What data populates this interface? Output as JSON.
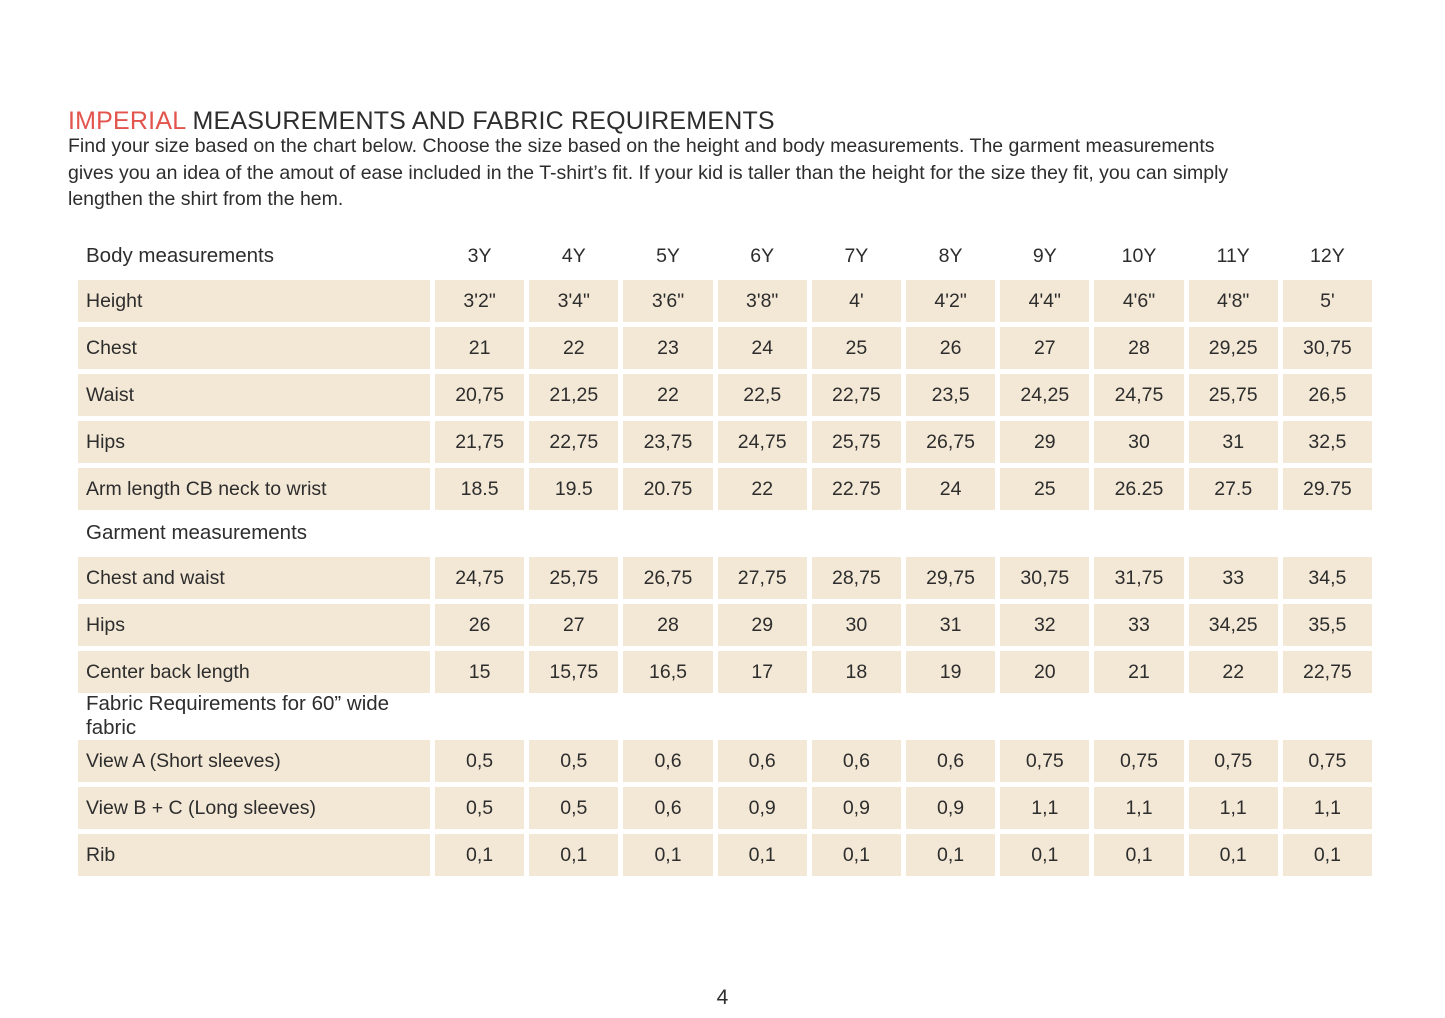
{
  "header": {
    "title_accent": "IMPERIAL",
    "title_rest": " MEASUREMENTS AND FABRIC REQUIREMENTS",
    "intro_lines": [
      "Find your size based on the chart below. Choose the size based on the height and body measurements. The garment measurements",
      "gives you an idea of the amout of ease included in the T-shirt’s fit. If your kid is taller than the height for the size they fit, you can simply",
      "lengthen the shirt from the hem."
    ]
  },
  "colors": {
    "accent_red": "#e2544c",
    "cell_beige": "#f3e8d6",
    "text_dark": "#2d2d2d"
  },
  "table": {
    "columns": [
      "3Y",
      "4Y",
      "5Y",
      "6Y",
      "7Y",
      "8Y",
      "9Y",
      "10Y",
      "11Y",
      "12Y"
    ],
    "sections": [
      {
        "heading": "Body measurements",
        "show_columns": true,
        "rows": [
          {
            "label": "Height",
            "values": [
              "3'2\"",
              "3'4\"",
              "3'6\"",
              "3'8\"",
              "4'",
              "4'2\"",
              "4'4\"",
              "4'6\"",
              "4'8\"",
              "5'"
            ]
          },
          {
            "label": "Chest",
            "values": [
              "21",
              "22",
              "23",
              "24",
              "25",
              "26",
              "27",
              "28",
              "29,25",
              "30,75"
            ]
          },
          {
            "label": "Waist",
            "values": [
              "20,75",
              "21,25",
              "22",
              "22,5",
              "22,75",
              "23,5",
              "24,25",
              "24,75",
              "25,75",
              "26,5"
            ]
          },
          {
            "label": "Hips",
            "values": [
              "21,75",
              "22,75",
              "23,75",
              "24,75",
              "25,75",
              "26,75",
              "29",
              "30",
              "31",
              "32,5"
            ]
          },
          {
            "label": "Arm length CB neck to wrist",
            "values": [
              "18.5",
              "19.5",
              "20.75",
              "22",
              "22.75",
              "24",
              "25",
              "26.25",
              "27.5",
              "29.75"
            ]
          }
        ]
      },
      {
        "heading": "Garment measurements",
        "show_columns": false,
        "rows": [
          {
            "label": "Chest and waist",
            "values": [
              "24,75",
              "25,75",
              "26,75",
              "27,75",
              "28,75",
              "29,75",
              "30,75",
              "31,75",
              "33",
              "34,5"
            ]
          },
          {
            "label": "Hips",
            "values": [
              "26",
              "27",
              "28",
              "29",
              "30",
              "31",
              "32",
              "33",
              "34,25",
              "35,5"
            ]
          },
          {
            "label": "Center back length",
            "values": [
              "15",
              "15,75",
              "16,5",
              "17",
              "18",
              "19",
              "20",
              "21",
              "22",
              "22,75"
            ]
          }
        ]
      },
      {
        "heading": "Fabric Requirements for  60” wide fabric",
        "show_columns": false,
        "rows": [
          {
            "label": "View A (Short sleeves)",
            "values": [
              "0,5",
              "0,5",
              "0,6",
              "0,6",
              "0,6",
              "0,6",
              "0,75",
              "0,75",
              "0,75",
              "0,75"
            ]
          },
          {
            "label": "View B + C (Long sleeves)",
            "values": [
              "0,5",
              "0,5",
              "0,6",
              "0,9",
              "0,9",
              "0,9",
              "1,1",
              "1,1",
              "1,1",
              "1,1"
            ]
          },
          {
            "label": "Rib",
            "values": [
              "0,1",
              "0,1",
              "0,1",
              "0,1",
              "0,1",
              "0,1",
              "0,1",
              "0,1",
              "0,1",
              "0,1"
            ]
          }
        ]
      }
    ]
  },
  "footer": {
    "page_number": "4"
  }
}
